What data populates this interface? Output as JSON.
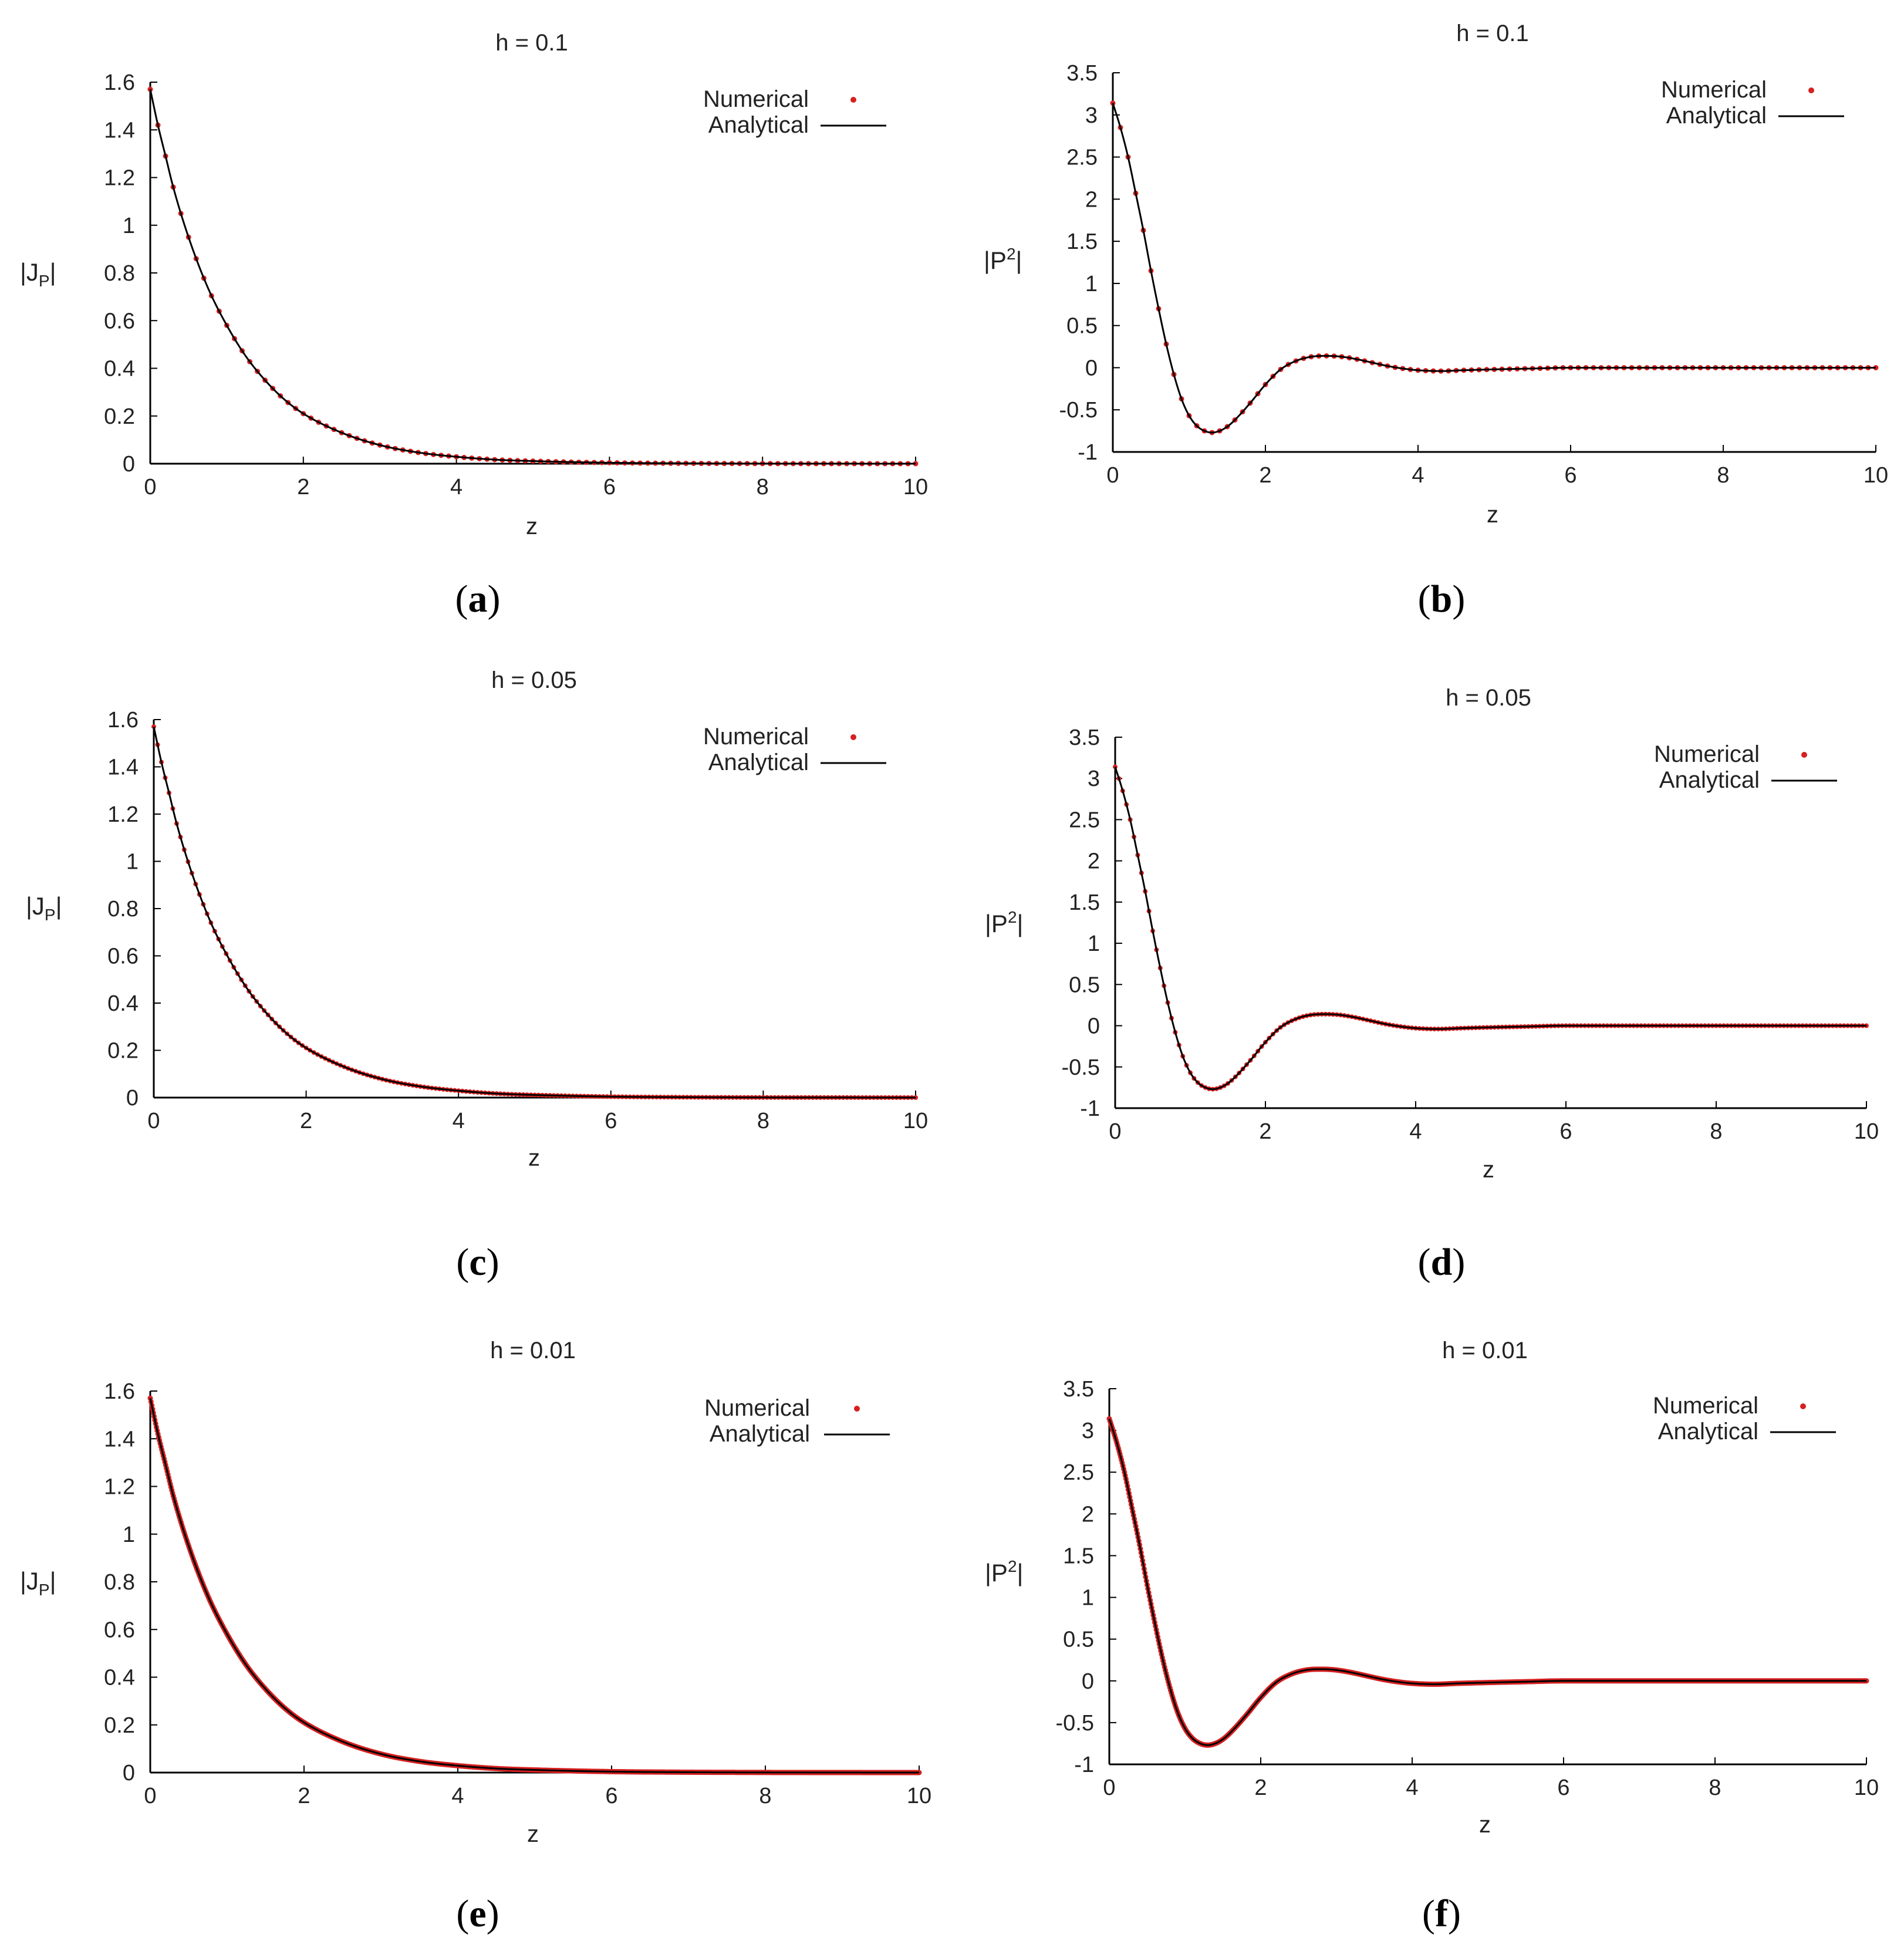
{
  "figure": {
    "captions": [
      {
        "open": "(",
        "letter": "a",
        "close": ")"
      },
      {
        "open": "(",
        "letter": "b",
        "close": ")"
      },
      {
        "open": "(",
        "letter": "c",
        "close": ")"
      },
      {
        "open": "(",
        "letter": "d",
        "close": ")"
      },
      {
        "open": "(",
        "letter": "e",
        "close": ")"
      },
      {
        "open": "(",
        "letter": "f",
        "close": ")"
      }
    ]
  },
  "colors": {
    "numerical": "#d62020",
    "analytical": "#000000",
    "axis": "#000000"
  },
  "chart_data": [
    {
      "type": "line",
      "panel": "a",
      "title": "h = 0.1",
      "xlabel": "z",
      "ylabel": {
        "base": "|J",
        "sub": "P",
        "close": "|"
      },
      "xlim": [
        0,
        10
      ],
      "ylim": [
        0,
        1.6
      ],
      "xticks": [
        "0",
        "2",
        "4",
        "6",
        "8",
        "10"
      ],
      "yticks": [
        "0",
        "0.2",
        "0.4",
        "0.6",
        "0.8",
        "1",
        "1.2",
        "1.4",
        "1.6"
      ],
      "legend": {
        "position": "top-right",
        "entries": [
          "Numerical",
          "Analytical"
        ]
      },
      "step_h": 0.1,
      "series": [
        {
          "name": "Numerical",
          "style": "points",
          "x": [
            0,
            0.1,
            0.2,
            0.3,
            0.5,
            0.75,
            1,
            1.25,
            1.5,
            1.75,
            2,
            2.5,
            3,
            3.5,
            4,
            4.5,
            5,
            6,
            7,
            8,
            9,
            10
          ],
          "y": [
            1.57,
            1.42,
            1.29,
            1.16,
            0.95,
            0.74,
            0.58,
            0.45,
            0.35,
            0.27,
            0.21,
            0.13,
            0.078,
            0.047,
            0.029,
            0.017,
            0.011,
            0.004,
            0.0015,
            0.0005,
            0.0002,
            0.0001
          ]
        },
        {
          "name": "Analytical",
          "style": "line",
          "x": [
            0,
            0.1,
            0.2,
            0.3,
            0.5,
            0.75,
            1,
            1.25,
            1.5,
            1.75,
            2,
            2.5,
            3,
            3.5,
            4,
            4.5,
            5,
            6,
            7,
            8,
            9,
            10
          ],
          "y": [
            1.57,
            1.42,
            1.29,
            1.16,
            0.95,
            0.74,
            0.58,
            0.45,
            0.35,
            0.27,
            0.21,
            0.13,
            0.078,
            0.047,
            0.029,
            0.017,
            0.011,
            0.004,
            0.0015,
            0.0005,
            0.0002,
            0.0001
          ]
        }
      ]
    },
    {
      "type": "line",
      "panel": "b",
      "title": "h = 0.1",
      "xlabel": "z",
      "ylabel": {
        "base": "|P",
        "sup": "2",
        "close": "|"
      },
      "xlim": [
        0,
        10
      ],
      "ylim": [
        -1,
        3.5
      ],
      "xticks": [
        "0",
        "2",
        "4",
        "6",
        "8",
        "10"
      ],
      "yticks": [
        "-1",
        "-0.5",
        "0",
        "0.5",
        "1",
        "1.5",
        "2",
        "2.5",
        "3",
        "3.5"
      ],
      "legend": {
        "position": "top-right",
        "entries": [
          "Numerical",
          "Analytical"
        ]
      },
      "step_h": 0.1,
      "series": [
        {
          "name": "Numerical",
          "style": "points",
          "x": [
            0,
            0.1,
            0.2,
            0.3,
            0.4,
            0.5,
            0.6,
            0.7,
            0.8,
            0.9,
            1,
            1.1,
            1.2,
            1.3,
            1.4,
            1.5,
            1.6,
            1.8,
            2,
            2.2,
            2.4,
            2.6,
            2.8,
            3,
            3.2,
            3.4,
            3.6,
            3.8,
            4,
            4.3,
            4.6,
            5,
            5.5,
            6,
            6.5,
            7,
            8,
            9,
            10
          ],
          "y": [
            3.14,
            2.85,
            2.5,
            2.07,
            1.63,
            1.15,
            0.7,
            0.28,
            -0.08,
            -0.37,
            -0.57,
            -0.69,
            -0.75,
            -0.77,
            -0.75,
            -0.7,
            -0.62,
            -0.42,
            -0.2,
            -0.02,
            0.08,
            0.13,
            0.14,
            0.13,
            0.1,
            0.06,
            0.02,
            -0.01,
            -0.03,
            -0.04,
            -0.03,
            -0.02,
            -0.01,
            0,
            0,
            0,
            0,
            0,
            0
          ]
        },
        {
          "name": "Analytical",
          "style": "line",
          "x": [
            0,
            0.1,
            0.2,
            0.3,
            0.4,
            0.5,
            0.6,
            0.7,
            0.8,
            0.9,
            1,
            1.1,
            1.2,
            1.3,
            1.4,
            1.5,
            1.6,
            1.8,
            2,
            2.2,
            2.4,
            2.6,
            2.8,
            3,
            3.2,
            3.4,
            3.6,
            3.8,
            4,
            4.3,
            4.6,
            5,
            5.5,
            6,
            6.5,
            7,
            8,
            9,
            10
          ],
          "y": [
            3.14,
            2.85,
            2.5,
            2.07,
            1.63,
            1.15,
            0.7,
            0.28,
            -0.08,
            -0.37,
            -0.57,
            -0.69,
            -0.75,
            -0.77,
            -0.75,
            -0.7,
            -0.62,
            -0.42,
            -0.2,
            -0.02,
            0.08,
            0.13,
            0.14,
            0.13,
            0.1,
            0.06,
            0.02,
            -0.01,
            -0.03,
            -0.04,
            -0.03,
            -0.02,
            -0.01,
            0,
            0,
            0,
            0,
            0,
            0
          ]
        }
      ]
    },
    {
      "type": "line",
      "panel": "c",
      "title": "h = 0.05",
      "xlabel": "z",
      "ylabel": {
        "base": "|J",
        "sub": "P",
        "close": "|"
      },
      "xlim": [
        0,
        10
      ],
      "ylim": [
        0,
        1.6
      ],
      "xticks": [
        "0",
        "2",
        "4",
        "6",
        "8",
        "10"
      ],
      "yticks": [
        "0",
        "0.2",
        "0.4",
        "0.6",
        "0.8",
        "1",
        "1.2",
        "1.4",
        "1.6"
      ],
      "legend": {
        "position": "top-right",
        "entries": [
          "Numerical",
          "Analytical"
        ]
      },
      "step_h": 0.05,
      "series": [
        {
          "name": "Numerical",
          "style": "points",
          "x": [
            0,
            0.1,
            0.2,
            0.3,
            0.5,
            0.75,
            1,
            1.25,
            1.5,
            1.75,
            2,
            2.5,
            3,
            3.5,
            4,
            4.5,
            5,
            6,
            7,
            8,
            9,
            10
          ],
          "y": [
            1.57,
            1.42,
            1.29,
            1.16,
            0.95,
            0.74,
            0.58,
            0.45,
            0.35,
            0.27,
            0.21,
            0.13,
            0.078,
            0.047,
            0.029,
            0.017,
            0.011,
            0.004,
            0.0015,
            0.0005,
            0.0002,
            0.0001
          ]
        },
        {
          "name": "Analytical",
          "style": "line",
          "x": [
            0,
            0.1,
            0.2,
            0.3,
            0.5,
            0.75,
            1,
            1.25,
            1.5,
            1.75,
            2,
            2.5,
            3,
            3.5,
            4,
            4.5,
            5,
            6,
            7,
            8,
            9,
            10
          ],
          "y": [
            1.57,
            1.42,
            1.29,
            1.16,
            0.95,
            0.74,
            0.58,
            0.45,
            0.35,
            0.27,
            0.21,
            0.13,
            0.078,
            0.047,
            0.029,
            0.017,
            0.011,
            0.004,
            0.0015,
            0.0005,
            0.0002,
            0.0001
          ]
        }
      ]
    },
    {
      "type": "line",
      "panel": "d",
      "title": "h = 0.05",
      "xlabel": "z",
      "ylabel": {
        "base": "|P",
        "sup": "2",
        "close": "|"
      },
      "xlim": [
        0,
        10
      ],
      "ylim": [
        -1,
        3.5
      ],
      "xticks": [
        "0",
        "2",
        "4",
        "6",
        "8",
        "10"
      ],
      "yticks": [
        "-1",
        "-0.5",
        "0",
        "0.5",
        "1",
        "1.5",
        "2",
        "2.5",
        "3",
        "3.5"
      ],
      "legend": {
        "position": "top-right",
        "entries": [
          "Numerical",
          "Analytical"
        ]
      },
      "step_h": 0.05,
      "series": [
        {
          "name": "Numerical",
          "style": "points",
          "x": [
            0,
            0.1,
            0.2,
            0.3,
            0.4,
            0.5,
            0.6,
            0.7,
            0.8,
            0.9,
            1,
            1.1,
            1.2,
            1.3,
            1.4,
            1.5,
            1.6,
            1.8,
            2,
            2.2,
            2.4,
            2.6,
            2.8,
            3,
            3.2,
            3.4,
            3.6,
            3.8,
            4,
            4.3,
            4.6,
            5,
            5.5,
            6,
            6.5,
            7,
            8,
            9,
            10
          ],
          "y": [
            3.14,
            2.85,
            2.5,
            2.07,
            1.63,
            1.15,
            0.7,
            0.28,
            -0.08,
            -0.37,
            -0.57,
            -0.69,
            -0.75,
            -0.77,
            -0.75,
            -0.7,
            -0.62,
            -0.42,
            -0.2,
            -0.02,
            0.08,
            0.13,
            0.14,
            0.13,
            0.1,
            0.06,
            0.02,
            -0.01,
            -0.03,
            -0.04,
            -0.03,
            -0.02,
            -0.01,
            0,
            0,
            0,
            0,
            0,
            0
          ]
        },
        {
          "name": "Analytical",
          "style": "line",
          "x": [
            0,
            0.1,
            0.2,
            0.3,
            0.4,
            0.5,
            0.6,
            0.7,
            0.8,
            0.9,
            1,
            1.1,
            1.2,
            1.3,
            1.4,
            1.5,
            1.6,
            1.8,
            2,
            2.2,
            2.4,
            2.6,
            2.8,
            3,
            3.2,
            3.4,
            3.6,
            3.8,
            4,
            4.3,
            4.6,
            5,
            5.5,
            6,
            6.5,
            7,
            8,
            9,
            10
          ],
          "y": [
            3.14,
            2.85,
            2.5,
            2.07,
            1.63,
            1.15,
            0.7,
            0.28,
            -0.08,
            -0.37,
            -0.57,
            -0.69,
            -0.75,
            -0.77,
            -0.75,
            -0.7,
            -0.62,
            -0.42,
            -0.2,
            -0.02,
            0.08,
            0.13,
            0.14,
            0.13,
            0.1,
            0.06,
            0.02,
            -0.01,
            -0.03,
            -0.04,
            -0.03,
            -0.02,
            -0.01,
            0,
            0,
            0,
            0,
            0,
            0
          ]
        }
      ]
    },
    {
      "type": "line",
      "panel": "e",
      "title": "h = 0.01",
      "xlabel": "z",
      "ylabel": {
        "base": "|J",
        "sub": "P",
        "close": "|"
      },
      "xlim": [
        0,
        10
      ],
      "ylim": [
        0,
        1.6
      ],
      "xticks": [
        "0",
        "2",
        "4",
        "6",
        "8",
        "10"
      ],
      "yticks": [
        "0",
        "0.2",
        "0.4",
        "0.6",
        "0.8",
        "1",
        "1.2",
        "1.4",
        "1.6"
      ],
      "legend": {
        "position": "top-right",
        "entries": [
          "Numerical",
          "Analytical"
        ]
      },
      "step_h": 0.01,
      "series": [
        {
          "name": "Numerical",
          "style": "points",
          "x": [
            0,
            0.1,
            0.2,
            0.3,
            0.5,
            0.75,
            1,
            1.25,
            1.5,
            1.75,
            2,
            2.5,
            3,
            3.5,
            4,
            4.5,
            5,
            6,
            7,
            8,
            9,
            10
          ],
          "y": [
            1.57,
            1.42,
            1.29,
            1.16,
            0.95,
            0.74,
            0.58,
            0.45,
            0.35,
            0.27,
            0.21,
            0.13,
            0.078,
            0.047,
            0.029,
            0.017,
            0.011,
            0.004,
            0.0015,
            0.0005,
            0.0002,
            0.0001
          ]
        },
        {
          "name": "Analytical",
          "style": "line",
          "x": [
            0,
            0.1,
            0.2,
            0.3,
            0.5,
            0.75,
            1,
            1.25,
            1.5,
            1.75,
            2,
            2.5,
            3,
            3.5,
            4,
            4.5,
            5,
            6,
            7,
            8,
            9,
            10
          ],
          "y": [
            1.57,
            1.42,
            1.29,
            1.16,
            0.95,
            0.74,
            0.58,
            0.45,
            0.35,
            0.27,
            0.21,
            0.13,
            0.078,
            0.047,
            0.029,
            0.017,
            0.011,
            0.004,
            0.0015,
            0.0005,
            0.0002,
            0.0001
          ]
        }
      ]
    },
    {
      "type": "line",
      "panel": "f",
      "title": "h = 0.01",
      "xlabel": "z",
      "ylabel": {
        "base": "|P",
        "sup": "2",
        "close": "|"
      },
      "xlim": [
        0,
        10
      ],
      "ylim": [
        -1,
        3.5
      ],
      "xticks": [
        "0",
        "2",
        "4",
        "6",
        "8",
        "10"
      ],
      "yticks": [
        "-1",
        "-0.5",
        "0",
        "0.5",
        "1",
        "1.5",
        "2",
        "2.5",
        "3",
        "3.5"
      ],
      "legend": {
        "position": "top-right",
        "entries": [
          "Numerical",
          "Analytical"
        ]
      },
      "step_h": 0.01,
      "series": [
        {
          "name": "Numerical",
          "style": "points",
          "x": [
            0,
            0.1,
            0.2,
            0.3,
            0.4,
            0.5,
            0.6,
            0.7,
            0.8,
            0.9,
            1,
            1.1,
            1.2,
            1.3,
            1.4,
            1.5,
            1.6,
            1.8,
            2,
            2.2,
            2.4,
            2.6,
            2.8,
            3,
            3.2,
            3.4,
            3.6,
            3.8,
            4,
            4.3,
            4.6,
            5,
            5.5,
            6,
            6.5,
            7,
            8,
            9,
            10
          ],
          "y": [
            3.14,
            2.85,
            2.5,
            2.07,
            1.63,
            1.15,
            0.7,
            0.28,
            -0.08,
            -0.37,
            -0.57,
            -0.69,
            -0.75,
            -0.77,
            -0.75,
            -0.7,
            -0.62,
            -0.42,
            -0.2,
            -0.02,
            0.08,
            0.13,
            0.14,
            0.13,
            0.1,
            0.06,
            0.02,
            -0.01,
            -0.03,
            -0.04,
            -0.03,
            -0.02,
            -0.01,
            0,
            0,
            0,
            0,
            0,
            0
          ]
        },
        {
          "name": "Analytical",
          "style": "line",
          "x": [
            0,
            0.1,
            0.2,
            0.3,
            0.4,
            0.5,
            0.6,
            0.7,
            0.8,
            0.9,
            1,
            1.1,
            1.2,
            1.3,
            1.4,
            1.5,
            1.6,
            1.8,
            2,
            2.2,
            2.4,
            2.6,
            2.8,
            3,
            3.2,
            3.4,
            3.6,
            3.8,
            4,
            4.3,
            4.6,
            5,
            5.5,
            6,
            6.5,
            7,
            8,
            9,
            10
          ],
          "y": [
            3.14,
            2.85,
            2.5,
            2.07,
            1.63,
            1.15,
            0.7,
            0.28,
            -0.08,
            -0.37,
            -0.57,
            -0.69,
            -0.75,
            -0.77,
            -0.75,
            -0.7,
            -0.62,
            -0.42,
            -0.2,
            -0.02,
            0.08,
            0.13,
            0.14,
            0.13,
            0.1,
            0.06,
            0.02,
            -0.01,
            -0.03,
            -0.04,
            -0.03,
            -0.02,
            -0.01,
            0,
            0,
            0,
            0,
            0,
            0
          ]
        }
      ]
    }
  ]
}
